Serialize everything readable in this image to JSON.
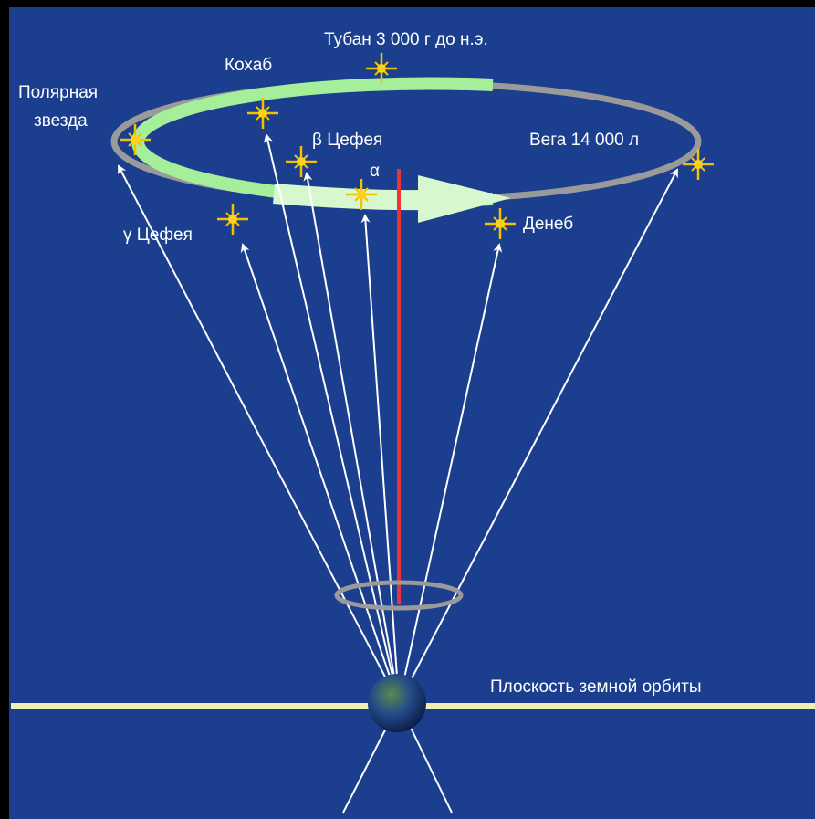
{
  "labels": {
    "thuban": "Тубан 3 000 г до н.э.",
    "kochab": "Кохаб",
    "polaris": [
      "Полярная",
      "звезда"
    ],
    "beta_cephei": "β Цефея",
    "alpha": "α",
    "vega": "Вега 14 000 л",
    "gamma_cephei": "γ Цефея",
    "deneb": "Денеб",
    "orbit_plane": "Плоскость земной орбиты"
  }
}
